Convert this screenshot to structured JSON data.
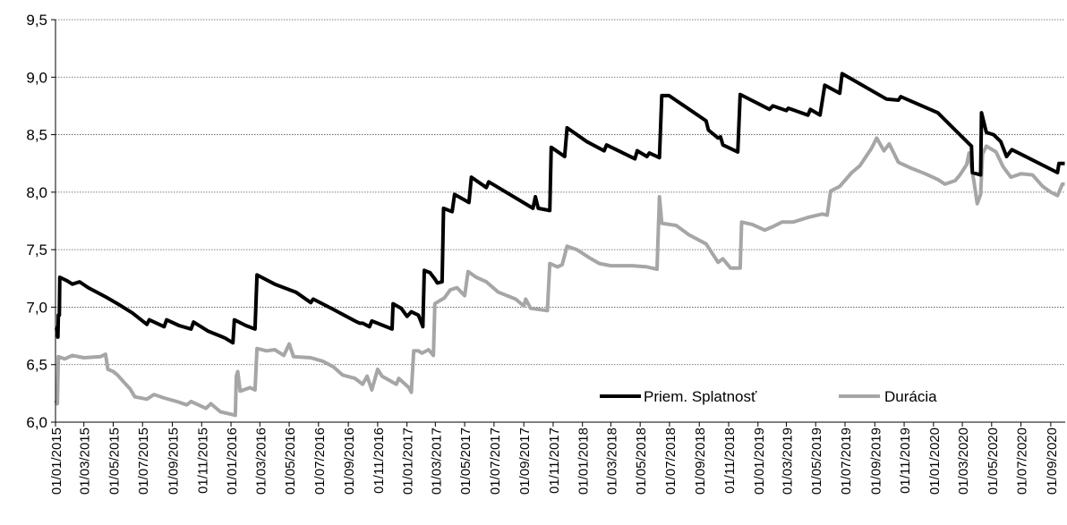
{
  "chart_data": {
    "type": "line",
    "title": "",
    "xlabel": "",
    "ylabel": "",
    "ylim": [
      6.0,
      9.5
    ],
    "yticks": [
      6.0,
      6.5,
      7.0,
      7.5,
      8.0,
      8.5,
      9.0,
      9.5
    ],
    "ytick_labels": [
      "6,0",
      "6,5",
      "7,0",
      "7,5",
      "8,0",
      "8,5",
      "9,0",
      "9,5"
    ],
    "xlim": [
      "2015-01-01",
      "2020-10-01"
    ],
    "x_tick_labels": [
      "01/01/2015",
      "01/03/2015",
      "01/05/2015",
      "01/07/2015",
      "01/09/2015",
      "01/11/2015",
      "01/01/2016",
      "01/03/2016",
      "01/05/2016",
      "01/07/2016",
      "01/09/2016",
      "01/11/2016",
      "01/01/2017",
      "01/03/2017",
      "01/05/2017",
      "01/07/2017",
      "01/09/2017",
      "01/11/2017",
      "01/01/2018",
      "01/03/2018",
      "01/05/2018",
      "01/07/2018",
      "01/09/2018",
      "01/11/2018",
      "01/01/2019",
      "01/03/2019",
      "01/05/2019",
      "01/07/2019",
      "01/09/2019",
      "01/11/2019",
      "01/01/2020",
      "01/03/2020",
      "01/05/2020",
      "01/07/2020",
      "01/09/2020"
    ],
    "x_tick_dates": [
      "2015-01-01",
      "2015-03-01",
      "2015-05-01",
      "2015-07-01",
      "2015-09-01",
      "2015-11-01",
      "2016-01-01",
      "2016-03-01",
      "2016-05-01",
      "2016-07-01",
      "2016-09-01",
      "2016-11-01",
      "2017-01-01",
      "2017-03-01",
      "2017-05-01",
      "2017-07-01",
      "2017-09-01",
      "2017-11-01",
      "2018-01-01",
      "2018-03-01",
      "2018-05-01",
      "2018-07-01",
      "2018-09-01",
      "2018-11-01",
      "2019-01-01",
      "2019-03-01",
      "2019-05-01",
      "2019-07-01",
      "2019-09-01",
      "2019-11-01",
      "2020-01-01",
      "2020-03-01",
      "2020-05-01",
      "2020-07-01",
      "2020-09-01"
    ],
    "grid": "horizontal-dotted",
    "legend_position": "bottom-right",
    "series": [
      {
        "name": "Priem. Splatnosť",
        "color": "#000000",
        "points": [
          [
            "2015-01-01",
            6.82
          ],
          [
            "2015-01-03",
            6.82
          ],
          [
            "2015-01-04",
            6.78
          ],
          [
            "2015-01-06",
            6.74
          ],
          [
            "2015-01-07",
            6.93
          ],
          [
            "2015-01-09",
            6.93
          ],
          [
            "2015-01-10",
            7.26
          ],
          [
            "2015-01-25",
            7.23
          ],
          [
            "2015-02-05",
            7.2
          ],
          [
            "2015-02-20",
            7.22
          ],
          [
            "2015-03-10",
            7.17
          ],
          [
            "2015-04-15",
            7.09
          ],
          [
            "2015-05-10",
            7.03
          ],
          [
            "2015-06-10",
            6.95
          ],
          [
            "2015-07-10",
            6.85
          ],
          [
            "2015-07-15",
            6.89
          ],
          [
            "2015-08-15",
            6.83
          ],
          [
            "2015-08-20",
            6.89
          ],
          [
            "2015-09-15",
            6.84
          ],
          [
            "2015-10-10",
            6.81
          ],
          [
            "2015-10-15",
            6.87
          ],
          [
            "2015-11-15",
            6.79
          ],
          [
            "2015-12-15",
            6.74
          ],
          [
            "2015-12-20",
            6.73
          ],
          [
            "2016-01-05",
            6.69
          ],
          [
            "2016-01-08",
            6.89
          ],
          [
            "2016-02-01",
            6.84
          ],
          [
            "2016-02-20",
            6.81
          ],
          [
            "2016-02-24",
            7.28
          ],
          [
            "2016-04-01",
            7.2
          ],
          [
            "2016-05-15",
            7.13
          ],
          [
            "2016-06-15",
            7.04
          ],
          [
            "2016-06-20",
            7.07
          ],
          [
            "2016-08-01",
            6.98
          ],
          [
            "2016-09-15",
            6.88
          ],
          [
            "2016-09-25",
            6.86
          ],
          [
            "2016-10-01",
            6.86
          ],
          [
            "2016-10-15",
            6.83
          ],
          [
            "2016-10-20",
            6.88
          ],
          [
            "2016-12-01",
            6.81
          ],
          [
            "2016-12-03",
            7.03
          ],
          [
            "2016-12-20",
            6.99
          ],
          [
            "2017-01-01",
            6.92
          ],
          [
            "2017-01-10",
            6.96
          ],
          [
            "2017-01-25",
            6.93
          ],
          [
            "2017-02-03",
            6.83
          ],
          [
            "2017-02-06",
            7.32
          ],
          [
            "2017-02-18",
            7.3
          ],
          [
            "2017-03-01",
            7.24
          ],
          [
            "2017-03-05",
            7.21
          ],
          [
            "2017-03-15",
            7.22
          ],
          [
            "2017-03-18",
            7.86
          ],
          [
            "2017-04-05",
            7.83
          ],
          [
            "2017-04-10",
            7.98
          ],
          [
            "2017-05-10",
            7.91
          ],
          [
            "2017-05-15",
            8.13
          ],
          [
            "2017-06-15",
            8.04
          ],
          [
            "2017-06-20",
            8.09
          ],
          [
            "2017-09-20",
            7.86
          ],
          [
            "2017-09-25",
            7.96
          ],
          [
            "2017-10-01",
            7.86
          ],
          [
            "2017-10-25",
            7.84
          ],
          [
            "2017-10-28",
            8.39
          ],
          [
            "2017-11-25",
            8.31
          ],
          [
            "2017-11-30",
            8.56
          ],
          [
            "2018-01-10",
            8.44
          ],
          [
            "2018-02-15",
            8.36
          ],
          [
            "2018-02-20",
            8.41
          ],
          [
            "2018-04-20",
            8.29
          ],
          [
            "2018-04-25",
            8.36
          ],
          [
            "2018-05-15",
            8.31
          ],
          [
            "2018-05-20",
            8.34
          ],
          [
            "2018-06-10",
            8.3
          ],
          [
            "2018-06-15",
            8.84
          ],
          [
            "2018-06-30",
            8.84
          ],
          [
            "2018-09-15",
            8.62
          ],
          [
            "2018-09-20",
            8.54
          ],
          [
            "2018-10-10",
            8.47
          ],
          [
            "2018-10-15",
            8.48
          ],
          [
            "2018-10-20",
            8.41
          ],
          [
            "2018-11-20",
            8.35
          ],
          [
            "2018-11-25",
            8.85
          ],
          [
            "2019-01-25",
            8.72
          ],
          [
            "2019-02-01",
            8.75
          ],
          [
            "2019-03-01",
            8.71
          ],
          [
            "2019-03-05",
            8.73
          ],
          [
            "2019-04-15",
            8.67
          ],
          [
            "2019-04-20",
            8.72
          ],
          [
            "2019-05-10",
            8.67
          ],
          [
            "2019-05-20",
            8.93
          ],
          [
            "2019-06-20",
            8.86
          ],
          [
            "2019-06-25",
            9.03
          ],
          [
            "2019-09-25",
            8.81
          ],
          [
            "2019-10-20",
            8.8
          ],
          [
            "2019-10-25",
            8.83
          ],
          [
            "2020-01-10",
            8.69
          ],
          [
            "2020-02-20",
            8.52
          ],
          [
            "2020-03-20",
            8.4
          ],
          [
            "2020-03-22",
            8.17
          ],
          [
            "2020-04-08",
            8.15
          ],
          [
            "2020-04-10",
            8.69
          ],
          [
            "2020-04-20",
            8.52
          ],
          [
            "2020-05-05",
            8.5
          ],
          [
            "2020-05-20",
            8.44
          ],
          [
            "2020-06-01",
            8.31
          ],
          [
            "2020-06-12",
            8.37
          ],
          [
            "2020-09-15",
            8.17
          ],
          [
            "2020-09-18",
            8.25
          ],
          [
            "2020-09-30",
            8.25
          ]
        ]
      },
      {
        "name": "Durácia",
        "color": "#a6a6a6",
        "points": [
          [
            "2015-01-01",
            6.19
          ],
          [
            "2015-01-05",
            6.16
          ],
          [
            "2015-01-07",
            6.57
          ],
          [
            "2015-01-20",
            6.55
          ],
          [
            "2015-02-05",
            6.58
          ],
          [
            "2015-03-01",
            6.56
          ],
          [
            "2015-04-05",
            6.57
          ],
          [
            "2015-04-15",
            6.59
          ],
          [
            "2015-04-20",
            6.46
          ],
          [
            "2015-05-01",
            6.44
          ],
          [
            "2015-05-10",
            6.41
          ],
          [
            "2015-05-25",
            6.34
          ],
          [
            "2015-06-05",
            6.29
          ],
          [
            "2015-06-15",
            6.22
          ],
          [
            "2015-07-10",
            6.2
          ],
          [
            "2015-07-25",
            6.24
          ],
          [
            "2015-08-15",
            6.21
          ],
          [
            "2015-09-10",
            6.18
          ],
          [
            "2015-10-01",
            6.15
          ],
          [
            "2015-10-10",
            6.18
          ],
          [
            "2015-11-10",
            6.12
          ],
          [
            "2015-11-20",
            6.16
          ],
          [
            "2015-12-10",
            6.09
          ],
          [
            "2016-01-10",
            6.06
          ],
          [
            "2016-01-12",
            6.4
          ],
          [
            "2016-01-15",
            6.44
          ],
          [
            "2016-01-20",
            6.27
          ],
          [
            "2016-02-10",
            6.3
          ],
          [
            "2016-02-20",
            6.28
          ],
          [
            "2016-02-24",
            6.64
          ],
          [
            "2016-03-15",
            6.62
          ],
          [
            "2016-04-01",
            6.63
          ],
          [
            "2016-04-20",
            6.58
          ],
          [
            "2016-05-01",
            6.68
          ],
          [
            "2016-05-10",
            6.57
          ],
          [
            "2016-06-15",
            6.56
          ],
          [
            "2016-07-10",
            6.53
          ],
          [
            "2016-08-01",
            6.48
          ],
          [
            "2016-08-20",
            6.41
          ],
          [
            "2016-09-15",
            6.38
          ],
          [
            "2016-10-01",
            6.33
          ],
          [
            "2016-10-10",
            6.4
          ],
          [
            "2016-10-20",
            6.28
          ],
          [
            "2016-11-01",
            6.46
          ],
          [
            "2016-11-10",
            6.4
          ],
          [
            "2016-12-10",
            6.33
          ],
          [
            "2016-12-15",
            6.38
          ],
          [
            "2017-01-05",
            6.3
          ],
          [
            "2017-01-10",
            6.26
          ],
          [
            "2017-01-15",
            6.62
          ],
          [
            "2017-01-25",
            6.62
          ],
          [
            "2017-02-01",
            6.6
          ],
          [
            "2017-02-15",
            6.63
          ],
          [
            "2017-02-25",
            6.58
          ],
          [
            "2017-02-28",
            7.03
          ],
          [
            "2017-03-20",
            7.08
          ],
          [
            "2017-04-01",
            7.15
          ],
          [
            "2017-04-15",
            7.17
          ],
          [
            "2017-05-01",
            7.1
          ],
          [
            "2017-05-08",
            7.31
          ],
          [
            "2017-05-25",
            7.26
          ],
          [
            "2017-06-15",
            7.22
          ],
          [
            "2017-07-10",
            7.13
          ],
          [
            "2017-08-15",
            7.07
          ],
          [
            "2017-09-01",
            7.01
          ],
          [
            "2017-09-05",
            7.07
          ],
          [
            "2017-09-15",
            6.99
          ],
          [
            "2017-10-20",
            6.97
          ],
          [
            "2017-10-25",
            7.38
          ],
          [
            "2017-11-10",
            7.35
          ],
          [
            "2017-11-20",
            7.37
          ],
          [
            "2017-11-30",
            7.53
          ],
          [
            "2017-12-20",
            7.5
          ],
          [
            "2018-01-15",
            7.43
          ],
          [
            "2018-02-05",
            7.38
          ],
          [
            "2018-03-01",
            7.36
          ],
          [
            "2018-04-15",
            7.36
          ],
          [
            "2018-05-15",
            7.35
          ],
          [
            "2018-06-05",
            7.33
          ],
          [
            "2018-06-10",
            7.96
          ],
          [
            "2018-06-15",
            7.73
          ],
          [
            "2018-07-15",
            7.71
          ],
          [
            "2018-08-10",
            7.63
          ],
          [
            "2018-09-15",
            7.55
          ],
          [
            "2018-10-10",
            7.39
          ],
          [
            "2018-10-20",
            7.42
          ],
          [
            "2018-11-05",
            7.34
          ],
          [
            "2018-11-25",
            7.34
          ],
          [
            "2018-11-28",
            7.74
          ],
          [
            "2018-12-20",
            7.72
          ],
          [
            "2019-01-15",
            7.67
          ],
          [
            "2019-02-01",
            7.7
          ],
          [
            "2019-02-20",
            7.74
          ],
          [
            "2019-03-15",
            7.74
          ],
          [
            "2019-04-15",
            7.78
          ],
          [
            "2019-05-15",
            7.81
          ],
          [
            "2019-05-25",
            7.8
          ],
          [
            "2019-06-01",
            8.01
          ],
          [
            "2019-06-20",
            8.05
          ],
          [
            "2019-07-15",
            8.17
          ],
          [
            "2019-08-01",
            8.23
          ],
          [
            "2019-08-25",
            8.38
          ],
          [
            "2019-09-05",
            8.47
          ],
          [
            "2019-09-20",
            8.36
          ],
          [
            "2019-10-01",
            8.42
          ],
          [
            "2019-10-20",
            8.26
          ],
          [
            "2019-11-15",
            8.21
          ],
          [
            "2019-12-15",
            8.16
          ],
          [
            "2020-01-10",
            8.11
          ],
          [
            "2020-01-25",
            8.07
          ],
          [
            "2020-02-15",
            8.1
          ],
          [
            "2020-02-25",
            8.15
          ],
          [
            "2020-03-10",
            8.24
          ],
          [
            "2020-03-15",
            8.34
          ],
          [
            "2020-03-25",
            8.1
          ],
          [
            "2020-04-01",
            7.9
          ],
          [
            "2020-04-08",
            7.98
          ],
          [
            "2020-04-12",
            8.33
          ],
          [
            "2020-04-20",
            8.4
          ],
          [
            "2020-05-10",
            8.35
          ],
          [
            "2020-05-25",
            8.22
          ],
          [
            "2020-06-10",
            8.13
          ],
          [
            "2020-07-01",
            8.16
          ],
          [
            "2020-07-25",
            8.15
          ],
          [
            "2020-08-15",
            8.05
          ],
          [
            "2020-09-01",
            8.0
          ],
          [
            "2020-09-15",
            7.97
          ],
          [
            "2020-09-25",
            8.07
          ],
          [
            "2020-09-30",
            8.07
          ]
        ]
      }
    ]
  }
}
